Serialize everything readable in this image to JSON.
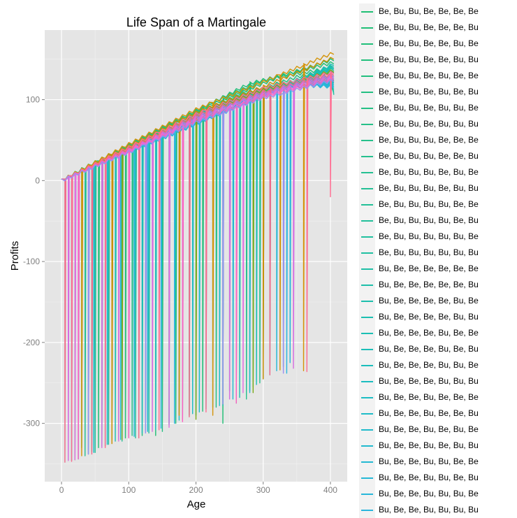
{
  "chart_data": {
    "type": "line",
    "title": "Life Span of a Martingale",
    "xlabel": "Age",
    "ylabel": "Profits",
    "xlim": [
      -25,
      425
    ],
    "ylim": [
      -372,
      186
    ],
    "x_ticks": [
      0,
      100,
      200,
      300,
      400
    ],
    "y_ticks": [
      100,
      0,
      -100,
      -200,
      -300
    ],
    "grid": true,
    "legend_position": "right",
    "series": [
      {
        "name": "Be, Bu, Bu, Be, Be, Be, Be",
        "color": "#1fbf74",
        "age": [
          0,
          30,
          90,
          160,
          240,
          330,
          405
        ],
        "profit": [
          0,
          14,
          40,
          70,
          100,
          130,
          150
        ],
        "drops": [
          [
            30,
            -330
          ],
          [
            140,
            -315
          ],
          [
            240,
            -300
          ]
        ]
      },
      {
        "name": "Be, Bu, Bu, Be, Be, Be, Bu",
        "color": "#20bf77",
        "age": [
          0,
          40,
          120,
          200,
          280,
          405
        ],
        "profit": [
          0,
          18,
          52,
          86,
          120,
          146
        ],
        "drops": [
          [
            55,
            -330
          ],
          [
            170,
            -300
          ],
          [
            280,
            -260
          ]
        ]
      },
      {
        "name": "Be, Bu, Bu, Be, Be, Bu, Be",
        "color": "#21bf79",
        "age": [
          0,
          60,
          140,
          220,
          300,
          405
        ],
        "profit": [
          0,
          26,
          60,
          95,
          124,
          140
        ],
        "drops": [
          [
            75,
            -320
          ],
          [
            210,
            -285
          ]
        ]
      },
      {
        "name": "Be, Bu, Bu, Be, Be, Bu, Bu",
        "color": "#22bf7c",
        "age": [
          0,
          50,
          150,
          250,
          350,
          405
        ],
        "profit": [
          0,
          22,
          65,
          100,
          128,
          138
        ],
        "drops": [
          [
            95,
            -318
          ],
          [
            190,
            -290
          ]
        ]
      },
      {
        "name": "Be, Bu, Bu, Be, Bu, Be, Be",
        "color": "#23bf7f",
        "age": [
          0,
          70,
          170,
          270,
          405
        ],
        "profit": [
          0,
          30,
          72,
          108,
          135
        ],
        "drops": [
          [
            20,
            -345
          ],
          [
            120,
            -315
          ]
        ]
      },
      {
        "name": "Be, Bu, Bu, Be, Bu, Be, Bu",
        "color": "#24c082",
        "age": [
          0,
          80,
          180,
          290,
          405
        ],
        "profit": [
          0,
          34,
          76,
          112,
          130
        ],
        "drops": [
          [
            45,
            -335
          ],
          [
            150,
            -310
          ]
        ]
      },
      {
        "name": "Be, Bu, Bu, Be, Bu, Bu, Be",
        "color": "#25c085",
        "age": [
          0,
          90,
          200,
          310,
          405
        ],
        "profit": [
          0,
          38,
          80,
          115,
          128
        ],
        "drops": [
          [
            65,
            -328
          ],
          [
            230,
            -280
          ]
        ]
      },
      {
        "name": "Be, Bu, Bu, Be, Bu, Bu, Bu",
        "color": "#26c088",
        "age": [
          0,
          100,
          210,
          320,
          405
        ],
        "profit": [
          0,
          42,
          84,
          118,
          125
        ],
        "drops": [
          [
            85,
            -320
          ],
          [
            260,
            -275
          ]
        ]
      },
      {
        "name": "Be, Bu, Bu, Bu, Be, Be, Be",
        "color": "#26c08b",
        "age": [
          0,
          110,
          220,
          330,
          405
        ],
        "profit": [
          0,
          46,
          88,
          120,
          123
        ],
        "drops": [
          [
            105,
            -315
          ],
          [
            295,
            -250
          ]
        ]
      },
      {
        "name": "Be, Bu, Bu, Bu, Be, Be, Bu",
        "color": "#26c08e",
        "age": [
          0,
          120,
          230,
          340,
          405
        ],
        "profit": [
          0,
          50,
          92,
          122,
          120
        ],
        "drops": [
          [
            125,
            -310
          ],
          [
            275,
            -270
          ]
        ]
      },
      {
        "name": "Be, Bu, Bu, Bu, Be, Bu, Be",
        "color": "#25c092",
        "age": [
          0,
          130,
          240,
          350,
          405
        ],
        "profit": [
          0,
          53,
          95,
          124,
          118
        ],
        "drops": [
          [
            35,
            -340
          ],
          [
            160,
            -300
          ]
        ]
      },
      {
        "name": "Be, Bu, Bu, Bu, Be, Bu, Bu",
        "color": "#24c095",
        "age": [
          0,
          140,
          250,
          360,
          405
        ],
        "profit": [
          0,
          56,
          98,
          126,
          116
        ],
        "drops": [
          [
            50,
            -336
          ],
          [
            200,
            -290
          ]
        ]
      },
      {
        "name": "Be, Bu, Bu, Bu, Bu, Be, Be",
        "color": "#23c098",
        "age": [
          0,
          150,
          260,
          370,
          405
        ],
        "profit": [
          0,
          60,
          102,
          128,
          114
        ],
        "drops": [
          [
            70,
            -326
          ],
          [
            225,
            -280
          ]
        ]
      },
      {
        "name": "Be, Bu, Bu, Bu, Bu, Be, Bu",
        "color": "#22c09b",
        "age": [
          0,
          160,
          270,
          380,
          405
        ],
        "profit": [
          0,
          64,
          105,
          130,
          112
        ],
        "drops": [
          [
            90,
            -322
          ],
          [
            250,
            -260
          ]
        ]
      },
      {
        "name": "Be, Bu, Bu, Bu, Bu, Bu, Be",
        "color": "#21c09f",
        "age": [
          0,
          170,
          280,
          390,
          405
        ],
        "profit": [
          0,
          68,
          108,
          132,
          110
        ],
        "drops": [
          [
            110,
            -318
          ],
          [
            300,
            -245
          ]
        ]
      },
      {
        "name": "Be, Bu, Bu, Bu, Bu, Bu, Bu",
        "color": "#20c0a2",
        "age": [
          0,
          180,
          290,
          400,
          405
        ],
        "profit": [
          0,
          72,
          110,
          134,
          108
        ],
        "drops": [
          [
            130,
            -312
          ],
          [
            285,
            -255
          ]
        ]
      },
      {
        "name": "Bu, Be, Be, Be, Be, Be, Be",
        "color": "#1fbfa6",
        "age": [
          0,
          190,
          300,
          405
        ],
        "profit": [
          0,
          76,
          112,
          136
        ],
        "drops": [
          [
            15,
            -346
          ],
          [
            180,
            -295
          ]
        ]
      },
      {
        "name": "Bu, Be, Be, Be, Be, Be, Bu",
        "color": "#1ebfa9",
        "age": [
          0,
          200,
          310,
          405
        ],
        "profit": [
          0,
          80,
          114,
          138
        ],
        "drops": [
          [
            40,
            -338
          ],
          [
            215,
            -282
          ]
        ]
      },
      {
        "name": "Bu, Be, Be, Be, Be, Bu, Be",
        "color": "#1dbfad",
        "age": [
          0,
          210,
          320,
          405
        ],
        "profit": [
          0,
          84,
          116,
          140
        ],
        "drops": [
          [
            60,
            -328
          ],
          [
            240,
            -278
          ]
        ]
      },
      {
        "name": "Bu, Be, Be, Be, Be, Bu, Bu",
        "color": "#1cbfb1",
        "age": [
          0,
          220,
          330,
          405
        ],
        "profit": [
          0,
          88,
          118,
          142
        ],
        "drops": [
          [
            80,
            -322
          ],
          [
            265,
            -268
          ]
        ]
      },
      {
        "name": "Bu, Be, Be, Be, Bu, Be, Be",
        "color": "#1bbfb4",
        "age": [
          0,
          230,
          340,
          405
        ],
        "profit": [
          0,
          92,
          120,
          144
        ],
        "drops": [
          [
            100,
            -316
          ],
          [
            290,
            -252
          ]
        ]
      },
      {
        "name": "Bu, Be, Be, Be, Bu, Be, Bu",
        "color": "#1bbeb8",
        "age": [
          0,
          240,
          350,
          405
        ],
        "profit": [
          0,
          94,
          122,
          140
        ],
        "drops": [
          [
            120,
            -312
          ],
          [
            310,
            -240
          ]
        ]
      },
      {
        "name": "Bu, Be, Be, Be, Bu, Bu, Be",
        "color": "#1bbebc",
        "age": [
          0,
          250,
          360,
          405
        ],
        "profit": [
          0,
          97,
          123,
          136
        ],
        "drops": [
          [
            140,
            -308
          ],
          [
            330,
            -230
          ]
        ]
      },
      {
        "name": "Bu, Be, Be, Be, Bu, Bu, Bu",
        "color": "#1cbdc0",
        "age": [
          0,
          260,
          370,
          405
        ],
        "profit": [
          0,
          100,
          124,
          132
        ],
        "drops": [
          [
            160,
            -302
          ],
          [
            195,
            -288
          ]
        ]
      },
      {
        "name": "Bu, Be, Be, Bu, Be, Be, Be",
        "color": "#1dbdc4",
        "age": [
          0,
          270,
          380,
          405
        ],
        "profit": [
          0,
          104,
          126,
          130
        ],
        "drops": [
          [
            25,
            -344
          ],
          [
            175,
            -296
          ]
        ]
      },
      {
        "name": "Bu, Be, Be, Bu, Be, Be, Bu",
        "color": "#1fbcc8",
        "age": [
          0,
          280,
          390,
          405
        ],
        "profit": [
          0,
          106,
          128,
          128
        ],
        "drops": [
          [
            48,
            -336
          ],
          [
            205,
            -286
          ]
        ]
      },
      {
        "name": "Bu, Be, Be, Bu, Be, Bu, Be",
        "color": "#20bbcb",
        "age": [
          0,
          290,
          400,
          405
        ],
        "profit": [
          0,
          108,
          129,
          126
        ],
        "drops": [
          [
            68,
            -326
          ],
          [
            235,
            -278
          ]
        ]
      },
      {
        "name": "Bu, Be, Be, Bu, Be, Bu, Bu",
        "color": "#22bacf",
        "age": [
          0,
          300,
          405
        ],
        "profit": [
          0,
          110,
          124
        ],
        "drops": [
          [
            88,
            -320
          ],
          [
            255,
            -270
          ]
        ]
      },
      {
        "name": "Bu, Be, Be, Bu, Bu, Be, Be",
        "color": "#24b9d3",
        "age": [
          0,
          310,
          405
        ],
        "profit": [
          0,
          112,
          122
        ],
        "drops": [
          [
            108,
            -316
          ],
          [
            280,
            -262
          ]
        ]
      },
      {
        "name": "Bu, Be, Be, Bu, Bu, Be, Bu",
        "color": "#26b8d6",
        "age": [
          0,
          320,
          405
        ],
        "profit": [
          0,
          114,
          120
        ],
        "drops": [
          [
            128,
            -310
          ],
          [
            320,
            -235
          ]
        ]
      },
      {
        "name": "Bu, Be, Be, Bu, Bu, Bu, Be",
        "color": "#28b7da",
        "age": [
          0,
          330,
          405
        ],
        "profit": [
          0,
          116,
          118
        ],
        "drops": [
          [
            148,
            -306
          ],
          [
            340,
            -225
          ]
        ]
      },
      {
        "name": "Bu, Be, Be, Bu, Bu, Bu, Bu",
        "color": "#2ab6dd",
        "age": [
          0,
          340,
          405
        ],
        "profit": [
          0,
          118,
          116
        ],
        "drops": [
          [
            168,
            -300
          ],
          [
            335,
            -238
          ]
        ]
      }
    ],
    "extra_series": [
      {
        "color": "#d4940a",
        "age": [
          0,
          100,
          200,
          300,
          405
        ],
        "profit": [
          0,
          45,
          88,
          122,
          158
        ],
        "drops": [
          [
            30,
            -340
          ],
          [
            225,
            -290
          ],
          [
            325,
            -234
          ],
          [
            360,
            -235
          ]
        ]
      },
      {
        "color": "#cc8f00",
        "age": [
          0,
          100,
          200,
          300,
          405
        ],
        "profit": [
          0,
          42,
          84,
          116,
          152
        ],
        "drops": [
          [
            75,
            -325
          ],
          [
            175,
            -290
          ],
          [
            300,
            -245
          ]
        ]
      },
      {
        "color": "#7caa1a",
        "age": [
          0,
          100,
          200,
          300,
          405
        ],
        "profit": [
          0,
          40,
          80,
          112,
          136
        ],
        "drops": [
          [
            90,
            -320
          ],
          [
            200,
            -295
          ],
          [
            285,
            -262
          ]
        ]
      },
      {
        "color": "#d66be0",
        "age": [
          0,
          100,
          200,
          300,
          405
        ],
        "profit": [
          0,
          38,
          78,
          108,
          130
        ],
        "drops": [
          [
            10,
            -346
          ],
          [
            60,
            -330
          ],
          [
            135,
            -310
          ],
          [
            250,
            -270
          ],
          [
            345,
            -232
          ]
        ]
      },
      {
        "color": "#e26ee0",
        "age": [
          0,
          100,
          200,
          300,
          405
        ],
        "profit": [
          0,
          37,
          76,
          106,
          128
        ],
        "drops": [
          [
            20,
            -345
          ],
          [
            85,
            -322
          ],
          [
            160,
            -305
          ],
          [
            270,
            -262
          ]
        ]
      },
      {
        "color": "#f06a8a",
        "age": [
          0,
          100,
          200,
          300,
          405
        ],
        "profit": [
          0,
          39,
          80,
          110,
          132
        ],
        "drops": [
          [
            5,
            -348
          ],
          [
            45,
            -338
          ],
          [
            115,
            -318
          ],
          [
            190,
            -292
          ],
          [
            310,
            -240
          ]
        ]
      },
      {
        "color": "#ff6c91",
        "age": [
          0,
          100,
          200,
          300,
          405
        ],
        "profit": [
          0,
          41,
          82,
          114,
          134
        ],
        "drops": [
          [
            15,
            -347
          ],
          [
            65,
            -330
          ],
          [
            145,
            -308
          ],
          [
            215,
            -286
          ],
          [
            365,
            -236
          ],
          [
            400,
            -20
          ]
        ]
      },
      {
        "color": "#ff61c3",
        "age": [
          0,
          100,
          200,
          300,
          405
        ],
        "profit": [
          0,
          36,
          74,
          104,
          126
        ],
        "drops": [
          [
            25,
            -344
          ],
          [
            100,
            -318
          ],
          [
            180,
            -298
          ],
          [
            260,
            -275
          ]
        ]
      },
      {
        "color": "#9a8ff0",
        "age": [
          0,
          100,
          200,
          300,
          405
        ],
        "profit": [
          0,
          35,
          72,
          102,
          124
        ],
        "drops": [
          [
            40,
            -338
          ],
          [
            125,
            -312
          ],
          [
            240,
            -276
          ],
          [
            330,
            -238
          ]
        ]
      }
    ]
  }
}
